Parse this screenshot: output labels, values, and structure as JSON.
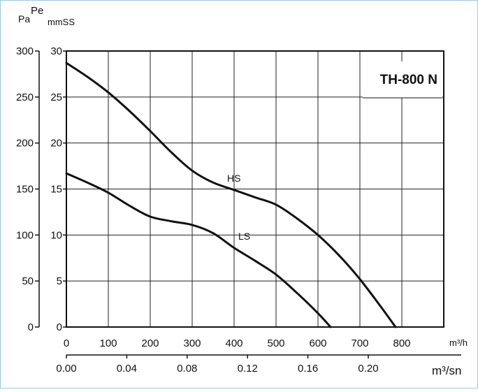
{
  "chart_data": {
    "type": "line",
    "title": "TH-800 N",
    "left_axis": {
      "top_label_a": "Pa",
      "top_label_b": "Pe",
      "range": [
        0,
        300
      ],
      "ticks": [
        0,
        50,
        100,
        150,
        200,
        250,
        300
      ]
    },
    "inner_axis": {
      "label": "mmSS",
      "ticks": [
        0,
        5,
        10,
        15,
        20,
        25,
        30
      ]
    },
    "x_axis_primary": {
      "unit_label": "m³/h",
      "range": [
        0,
        900
      ],
      "ticks": [
        0,
        100,
        200,
        300,
        400,
        500,
        600,
        700,
        800
      ]
    },
    "x_axis_secondary": {
      "unit_label": "m³/sn",
      "ticks": [
        "0.00",
        "0.04",
        "0.08",
        "0.12",
        "0.16",
        "0.20"
      ]
    },
    "grid": true,
    "series": [
      {
        "name": "HS",
        "x": [
          0,
          50,
          100,
          150,
          200,
          250,
          300,
          350,
          400,
          450,
          500,
          550,
          600,
          650,
          700,
          750,
          785
        ],
        "y": [
          287,
          272,
          255,
          235,
          213,
          190,
          170,
          157,
          149,
          141,
          133,
          118,
          100,
          78,
          52,
          22,
          0
        ]
      },
      {
        "name": "LS",
        "x": [
          0,
          50,
          100,
          150,
          200,
          250,
          300,
          350,
          400,
          450,
          500,
          550,
          600,
          630
        ],
        "y": [
          167,
          157,
          146,
          132,
          120,
          115,
          111,
          102,
          86,
          72,
          57,
          37,
          15,
          0
        ]
      }
    ]
  }
}
